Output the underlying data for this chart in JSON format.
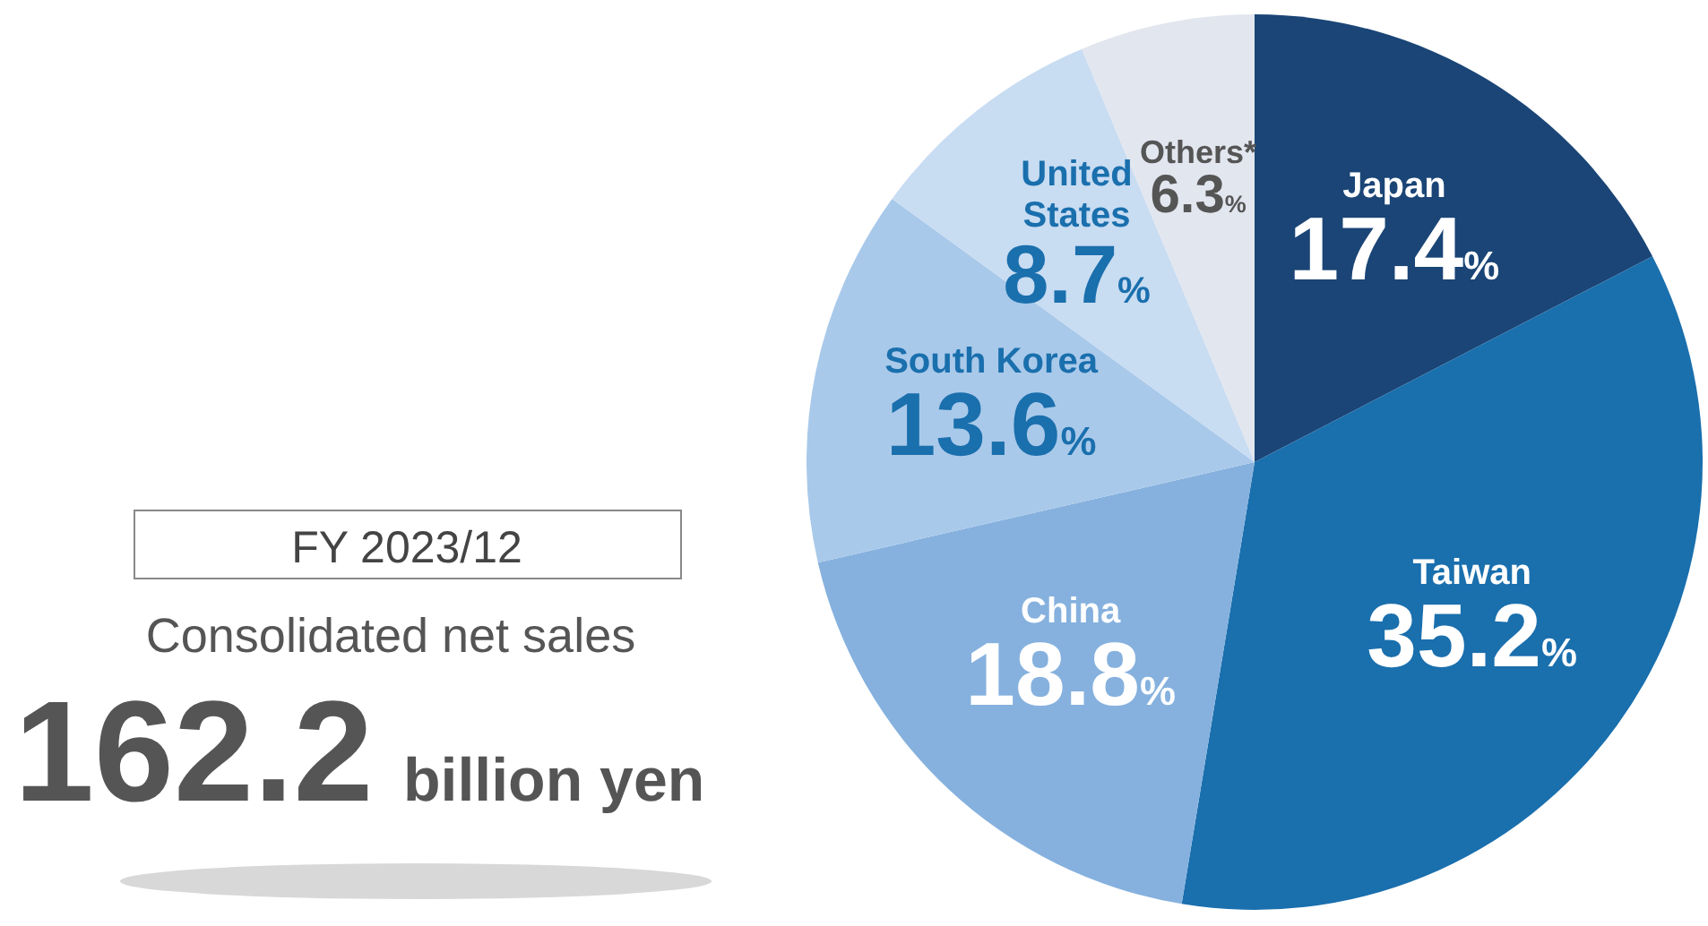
{
  "chart_data": {
    "type": "pie",
    "title": "FY 2023/12",
    "subtitle": "Consolidated net sales",
    "annotations": [
      "162.2",
      "billion yen"
    ],
    "categories": [
      "Japan",
      "Taiwan",
      "China",
      "South Korea",
      "United States",
      "Others*"
    ],
    "values": [
      17.4,
      35.2,
      18.8,
      13.6,
      8.7,
      6.3
    ],
    "colors": [
      "#1a4576",
      "#1a6fad",
      "#86b1de",
      "#a9c9ea",
      "#c8dcf2",
      "#e2e6ee"
    ],
    "value_labels": [
      "17.4%",
      "35.2%",
      "18.8%",
      "13.6%",
      "8.7%",
      "6.3%"
    ]
  }
}
